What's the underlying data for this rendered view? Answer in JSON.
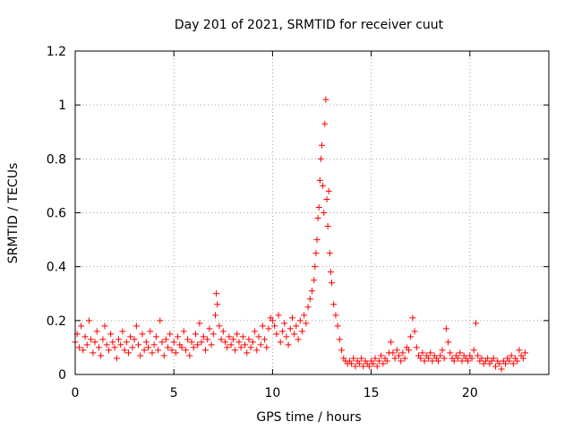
{
  "chart_data": {
    "type": "scatter",
    "title": "Day 201 of 2021, SRMTID for receiver cuut",
    "xlabel": "GPS time / hours",
    "ylabel": "SRMTID / TECUs",
    "xlim": [
      0,
      24
    ],
    "ylim": [
      0,
      1.2
    ],
    "xticks": [
      0,
      5,
      10,
      15,
      20
    ],
    "xtick_labels": [
      "0",
      "5",
      "10",
      "15",
      "20"
    ],
    "yticks": [
      0,
      0.2,
      0.4,
      0.6,
      0.8,
      1.0,
      1.2
    ],
    "ytick_labels": [
      "0",
      "0.2",
      "0.4",
      "0.6",
      "0.8",
      "1",
      "1.2"
    ],
    "grid": true,
    "marker": "+",
    "color": "#ff0000",
    "series": [
      {
        "name": "SRMTID",
        "points": [
          [
            0.0,
            0.12
          ],
          [
            0.1,
            0.15
          ],
          [
            0.2,
            0.1
          ],
          [
            0.3,
            0.18
          ],
          [
            0.4,
            0.09
          ],
          [
            0.5,
            0.14
          ],
          [
            0.6,
            0.11
          ],
          [
            0.7,
            0.2
          ],
          [
            0.8,
            0.13
          ],
          [
            0.9,
            0.08
          ],
          [
            1.0,
            0.12
          ],
          [
            1.1,
            0.16
          ],
          [
            1.2,
            0.1
          ],
          [
            1.3,
            0.07
          ],
          [
            1.4,
            0.13
          ],
          [
            1.5,
            0.18
          ],
          [
            1.6,
            0.11
          ],
          [
            1.7,
            0.09
          ],
          [
            1.8,
            0.15
          ],
          [
            1.9,
            0.12
          ],
          [
            2.0,
            0.1
          ],
          [
            2.1,
            0.06
          ],
          [
            2.2,
            0.13
          ],
          [
            2.3,
            0.11
          ],
          [
            2.4,
            0.16
          ],
          [
            2.5,
            0.09
          ],
          [
            2.6,
            0.12
          ],
          [
            2.7,
            0.08
          ],
          [
            2.8,
            0.14
          ],
          [
            2.9,
            0.1
          ],
          [
            3.0,
            0.13
          ],
          [
            3.1,
            0.18
          ],
          [
            3.2,
            0.11
          ],
          [
            3.3,
            0.07
          ],
          [
            3.4,
            0.15
          ],
          [
            3.5,
            0.09
          ],
          [
            3.6,
            0.12
          ],
          [
            3.7,
            0.1
          ],
          [
            3.8,
            0.16
          ],
          [
            3.9,
            0.08
          ],
          [
            4.0,
            0.11
          ],
          [
            4.1,
            0.14
          ],
          [
            4.2,
            0.09
          ],
          [
            4.3,
            0.2
          ],
          [
            4.4,
            0.12
          ],
          [
            4.5,
            0.07
          ],
          [
            4.6,
            0.13
          ],
          [
            4.7,
            0.1
          ],
          [
            4.8,
            0.15
          ],
          [
            4.9,
            0.09
          ],
          [
            5.0,
            0.12
          ],
          [
            5.1,
            0.08
          ],
          [
            5.2,
            0.14
          ],
          [
            5.3,
            0.11
          ],
          [
            5.4,
            0.1
          ],
          [
            5.5,
            0.16
          ],
          [
            5.6,
            0.09
          ],
          [
            5.7,
            0.13
          ],
          [
            5.8,
            0.07
          ],
          [
            5.9,
            0.12
          ],
          [
            6.0,
            0.1
          ],
          [
            6.1,
            0.15
          ],
          [
            6.2,
            0.11
          ],
          [
            6.3,
            0.19
          ],
          [
            6.4,
            0.12
          ],
          [
            6.5,
            0.14
          ],
          [
            6.6,
            0.09
          ],
          [
            6.7,
            0.13
          ],
          [
            6.8,
            0.17
          ],
          [
            6.9,
            0.11
          ],
          [
            7.0,
            0.15
          ],
          [
            7.1,
            0.22
          ],
          [
            7.15,
            0.3
          ],
          [
            7.2,
            0.26
          ],
          [
            7.3,
            0.18
          ],
          [
            7.4,
            0.13
          ],
          [
            7.5,
            0.16
          ],
          [
            7.6,
            0.12
          ],
          [
            7.7,
            0.1
          ],
          [
            7.8,
            0.14
          ],
          [
            7.9,
            0.11
          ],
          [
            8.0,
            0.13
          ],
          [
            8.1,
            0.09
          ],
          [
            8.2,
            0.15
          ],
          [
            8.3,
            0.12
          ],
          [
            8.4,
            0.1
          ],
          [
            8.5,
            0.14
          ],
          [
            8.6,
            0.11
          ],
          [
            8.7,
            0.08
          ],
          [
            8.8,
            0.13
          ],
          [
            8.9,
            0.1
          ],
          [
            9.0,
            0.12
          ],
          [
            9.1,
            0.16
          ],
          [
            9.2,
            0.09
          ],
          [
            9.3,
            0.14
          ],
          [
            9.4,
            0.11
          ],
          [
            9.5,
            0.18
          ],
          [
            9.6,
            0.13
          ],
          [
            9.7,
            0.1
          ],
          [
            9.8,
            0.17
          ],
          [
            9.9,
            0.21
          ],
          [
            10.0,
            0.2
          ],
          [
            10.1,
            0.18
          ],
          [
            10.2,
            0.15
          ],
          [
            10.3,
            0.22
          ],
          [
            10.4,
            0.12
          ],
          [
            10.5,
            0.16
          ],
          [
            10.6,
            0.19
          ],
          [
            10.7,
            0.14
          ],
          [
            10.8,
            0.11
          ],
          [
            10.9,
            0.17
          ],
          [
            11.0,
            0.21
          ],
          [
            11.1,
            0.15
          ],
          [
            11.2,
            0.18
          ],
          [
            11.3,
            0.13
          ],
          [
            11.4,
            0.2
          ],
          [
            11.5,
            0.16
          ],
          [
            11.6,
            0.22
          ],
          [
            11.7,
            0.19
          ],
          [
            11.8,
            0.25
          ],
          [
            11.9,
            0.28
          ],
          [
            12.0,
            0.31
          ],
          [
            12.1,
            0.35
          ],
          [
            12.15,
            0.4
          ],
          [
            12.2,
            0.45
          ],
          [
            12.25,
            0.5
          ],
          [
            12.3,
            0.58
          ],
          [
            12.35,
            0.62
          ],
          [
            12.4,
            0.72
          ],
          [
            12.45,
            0.8
          ],
          [
            12.5,
            0.85
          ],
          [
            12.55,
            0.7
          ],
          [
            12.6,
            0.6
          ],
          [
            12.65,
            0.93
          ],
          [
            12.7,
            1.02
          ],
          [
            12.75,
            0.65
          ],
          [
            12.8,
            0.55
          ],
          [
            12.85,
            0.68
          ],
          [
            12.9,
            0.45
          ],
          [
            12.95,
            0.38
          ],
          [
            13.0,
            0.34
          ],
          [
            13.1,
            0.26
          ],
          [
            13.2,
            0.22
          ],
          [
            13.3,
            0.18
          ],
          [
            13.4,
            0.13
          ],
          [
            13.5,
            0.09
          ],
          [
            13.6,
            0.06
          ],
          [
            13.7,
            0.05
          ],
          [
            13.8,
            0.04
          ],
          [
            13.9,
            0.05
          ],
          [
            14.0,
            0.04
          ],
          [
            14.1,
            0.06
          ],
          [
            14.2,
            0.03
          ],
          [
            14.3,
            0.05
          ],
          [
            14.4,
            0.04
          ],
          [
            14.5,
            0.06
          ],
          [
            14.6,
            0.03
          ],
          [
            14.7,
            0.05
          ],
          [
            14.8,
            0.04
          ],
          [
            14.9,
            0.03
          ],
          [
            15.0,
            0.05
          ],
          [
            15.1,
            0.04
          ],
          [
            15.2,
            0.06
          ],
          [
            15.3,
            0.03
          ],
          [
            15.4,
            0.05
          ],
          [
            15.5,
            0.07
          ],
          [
            15.6,
            0.04
          ],
          [
            15.7,
            0.06
          ],
          [
            15.8,
            0.05
          ],
          [
            15.9,
            0.08
          ],
          [
            16.0,
            0.12
          ],
          [
            16.1,
            0.08
          ],
          [
            16.2,
            0.06
          ],
          [
            16.3,
            0.09
          ],
          [
            16.4,
            0.07
          ],
          [
            16.5,
            0.05
          ],
          [
            16.6,
            0.08
          ],
          [
            16.7,
            0.06
          ],
          [
            16.8,
            0.1
          ],
          [
            16.9,
            0.09
          ],
          [
            17.0,
            0.14
          ],
          [
            17.1,
            0.21
          ],
          [
            17.2,
            0.16
          ],
          [
            17.3,
            0.1
          ],
          [
            17.4,
            0.07
          ],
          [
            17.5,
            0.06
          ],
          [
            17.6,
            0.08
          ],
          [
            17.7,
            0.05
          ],
          [
            17.8,
            0.07
          ],
          [
            17.9,
            0.06
          ],
          [
            18.0,
            0.08
          ],
          [
            18.1,
            0.05
          ],
          [
            18.2,
            0.07
          ],
          [
            18.3,
            0.06
          ],
          [
            18.4,
            0.05
          ],
          [
            18.5,
            0.07
          ],
          [
            18.6,
            0.09
          ],
          [
            18.7,
            0.06
          ],
          [
            18.8,
            0.17
          ],
          [
            18.9,
            0.12
          ],
          [
            19.0,
            0.08
          ],
          [
            19.1,
            0.06
          ],
          [
            19.2,
            0.05
          ],
          [
            19.3,
            0.07
          ],
          [
            19.4,
            0.06
          ],
          [
            19.5,
            0.08
          ],
          [
            19.6,
            0.05
          ],
          [
            19.7,
            0.07
          ],
          [
            19.8,
            0.06
          ],
          [
            19.9,
            0.05
          ],
          [
            20.0,
            0.07
          ],
          [
            20.1,
            0.06
          ],
          [
            20.2,
            0.09
          ],
          [
            20.3,
            0.19
          ],
          [
            20.4,
            0.07
          ],
          [
            20.5,
            0.05
          ],
          [
            20.6,
            0.06
          ],
          [
            20.7,
            0.04
          ],
          [
            20.8,
            0.05
          ],
          [
            20.9,
            0.06
          ],
          [
            21.0,
            0.04
          ],
          [
            21.1,
            0.05
          ],
          [
            21.2,
            0.06
          ],
          [
            21.3,
            0.03
          ],
          [
            21.4,
            0.05
          ],
          [
            21.5,
            0.04
          ],
          [
            21.6,
            0.02
          ],
          [
            21.7,
            0.05
          ],
          [
            21.8,
            0.04
          ],
          [
            21.9,
            0.06
          ],
          [
            22.0,
            0.05
          ],
          [
            22.1,
            0.07
          ],
          [
            22.2,
            0.04
          ],
          [
            22.3,
            0.06
          ],
          [
            22.4,
            0.05
          ],
          [
            22.5,
            0.09
          ],
          [
            22.6,
            0.07
          ],
          [
            22.7,
            0.06
          ],
          [
            22.8,
            0.08
          ]
        ]
      }
    ]
  }
}
